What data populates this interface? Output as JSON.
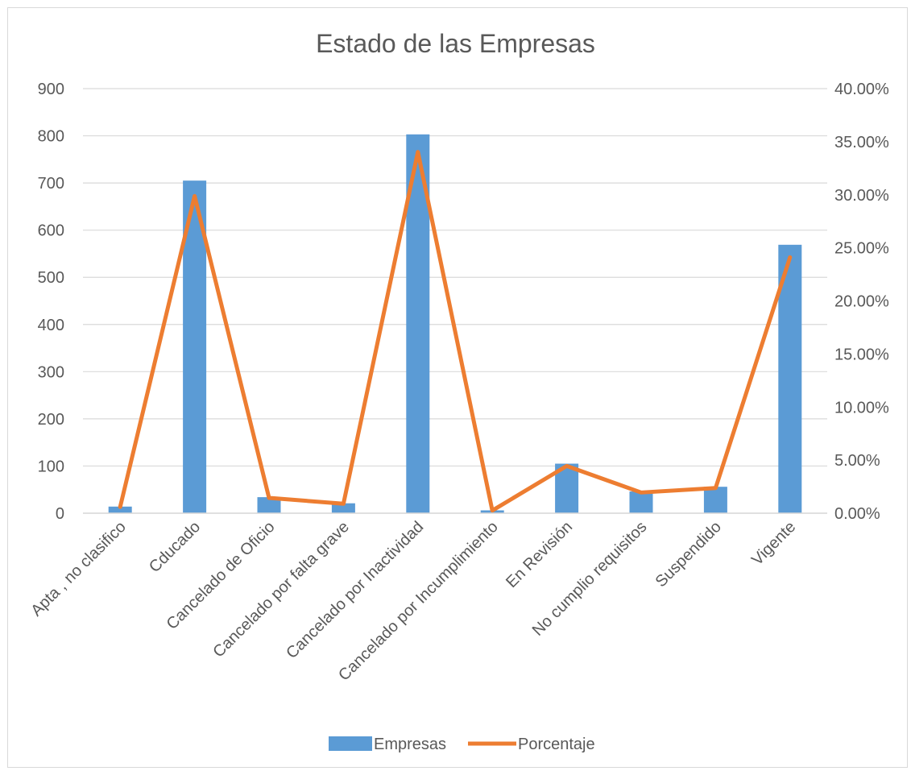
{
  "chart_data": {
    "type": "bar",
    "title": "Estado de las Empresas",
    "categories": [
      "Apta , no clasifico",
      "Cducado",
      "Cancelado de Oficio",
      "Cancelado por falta grave",
      "Cancelado por Inactividad",
      "Cancelado por Incumplimiento",
      "En Revisión",
      "No cumplio requisitos",
      "Suspendido",
      "Vigente"
    ],
    "series": [
      {
        "name": "Empresas",
        "type": "bar",
        "axis": "left",
        "color": "#5b9bd5",
        "values": [
          14,
          705,
          34,
          21,
          803,
          6,
          105,
          46,
          56,
          569
        ]
      },
      {
        "name": "Porcentaje",
        "type": "line",
        "axis": "right",
        "color": "#ed7d31",
        "values": [
          0.0059,
          0.2988,
          0.0144,
          0.0089,
          0.3403,
          0.0025,
          0.0445,
          0.0195,
          0.0237,
          0.2411
        ]
      }
    ],
    "ylim_left": [
      0,
      900
    ],
    "yticks_left": [
      "0",
      "100",
      "200",
      "300",
      "400",
      "500",
      "600",
      "700",
      "800",
      "900"
    ],
    "ylim_right": [
      0,
      0.4
    ],
    "yticks_right": [
      "0.00%",
      "5.00%",
      "10.00%",
      "15.00%",
      "20.00%",
      "25.00%",
      "30.00%",
      "35.00%",
      "40.00%"
    ],
    "grid": true,
    "legend_position": "bottom",
    "colors": {
      "gridline": "#d9d9d9",
      "text": "#595959"
    }
  }
}
